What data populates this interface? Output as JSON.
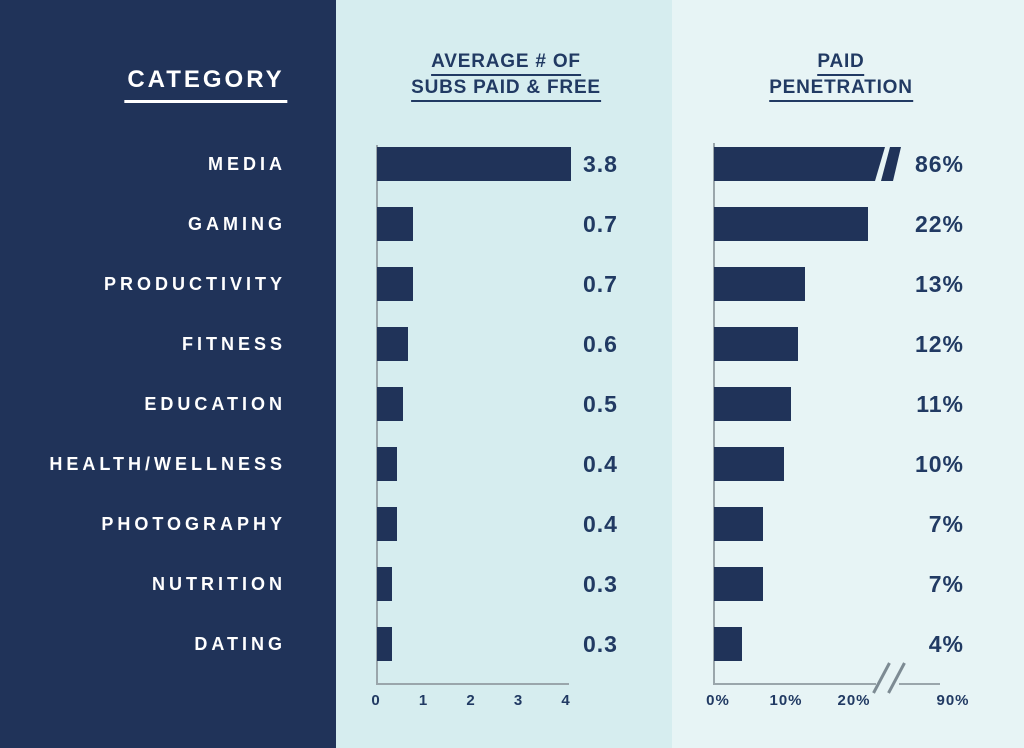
{
  "headers": {
    "category": "CATEGORY",
    "subs_line1": "AVERAGE # OF",
    "subs_line2": "SUBS PAID & FREE",
    "pen_line1": "PAID",
    "pen_line2": "PENETRATION"
  },
  "chart_data": {
    "type": "bar",
    "orientation": "horizontal",
    "categories": [
      "MEDIA",
      "GAMING",
      "PRODUCTIVITY",
      "FITNESS",
      "EDUCATION",
      "HEALTH/WELLNESS",
      "PHOTOGRAPHY",
      "NUTRITION",
      "DATING"
    ],
    "series": [
      {
        "name": "AVERAGE # OF SUBS PAID & FREE",
        "values": [
          3.8,
          0.7,
          0.7,
          0.6,
          0.5,
          0.4,
          0.4,
          0.3,
          0.3
        ],
        "labels": [
          "3.8",
          "0.7",
          "0.7",
          "0.6",
          "0.5",
          "0.4",
          "0.4",
          "0.3",
          "0.3"
        ],
        "xlim": [
          0,
          4
        ],
        "ticks": [
          "0",
          "1",
          "2",
          "3",
          "4"
        ]
      },
      {
        "name": "PAID PENETRATION",
        "values": [
          86,
          22,
          13,
          12,
          11,
          10,
          7,
          7,
          4
        ],
        "labels": [
          "86%",
          "22%",
          "13%",
          "12%",
          "11%",
          "10%",
          "7%",
          "7%",
          "4%"
        ],
        "xlim": [
          0,
          25
        ],
        "ticks": [
          "0%",
          "10%",
          "20%",
          "90%"
        ],
        "axis_break": {
          "between": [
            "20%",
            "90%"
          ],
          "broken_bar_category": "MEDIA"
        }
      }
    ],
    "grid": false,
    "legend": false
  },
  "colors": {
    "navy": "#203359",
    "panel_subs_bg": "#d6edef",
    "panel_pen_bg": "#e7f4f5",
    "text_navy": "#213a63",
    "axis_gray": "#9aa6ab",
    "break_gray": "#7d8b93",
    "white": "#ffffff"
  }
}
